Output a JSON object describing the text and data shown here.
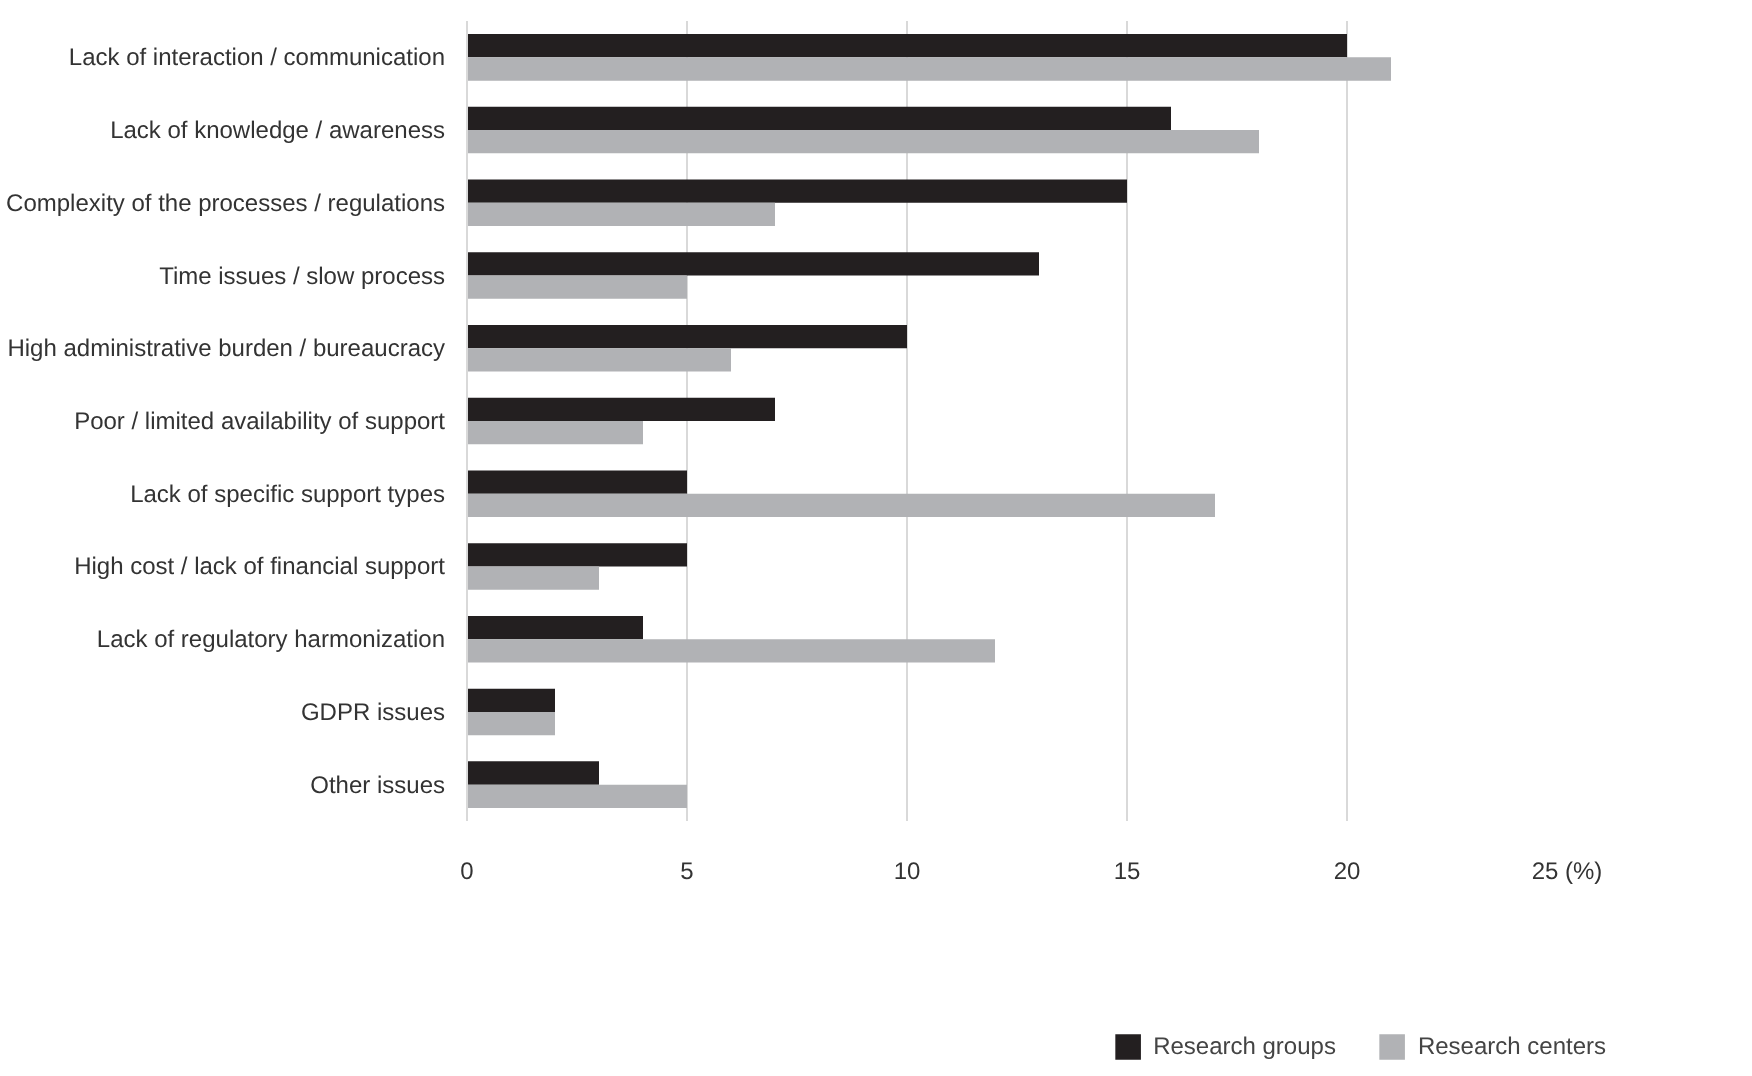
{
  "chart_data": {
    "type": "bar",
    "orientation": "horizontal",
    "categories": [
      "Lack of interaction / communication",
      "Lack of knowledge / awareness",
      "Complexity of the processes / regulations",
      "Time issues / slow process",
      "High administrative burden / bureaucracy",
      "Poor / limited availability of support",
      "Lack of specific support types",
      "High cost / lack of financial support",
      "Lack of regulatory harmonization",
      "GDPR issues",
      "Other issues"
    ],
    "series": [
      {
        "name": "Research groups",
        "color": "#231f20",
        "values": [
          20,
          16,
          15,
          13,
          10,
          7,
          5,
          5,
          4,
          2,
          3
        ]
      },
      {
        "name": "Research centers",
        "color": "#b1b2b5",
        "values": [
          21,
          18,
          7,
          5,
          6,
          4,
          17,
          3,
          12,
          2,
          5
        ]
      }
    ],
    "xlim": [
      0,
      25
    ],
    "xticks": [
      0,
      5,
      10,
      15,
      20,
      {
        "value": 25,
        "label": "25 (%)"
      }
    ],
    "grid": "x",
    "legend": "bottom"
  }
}
